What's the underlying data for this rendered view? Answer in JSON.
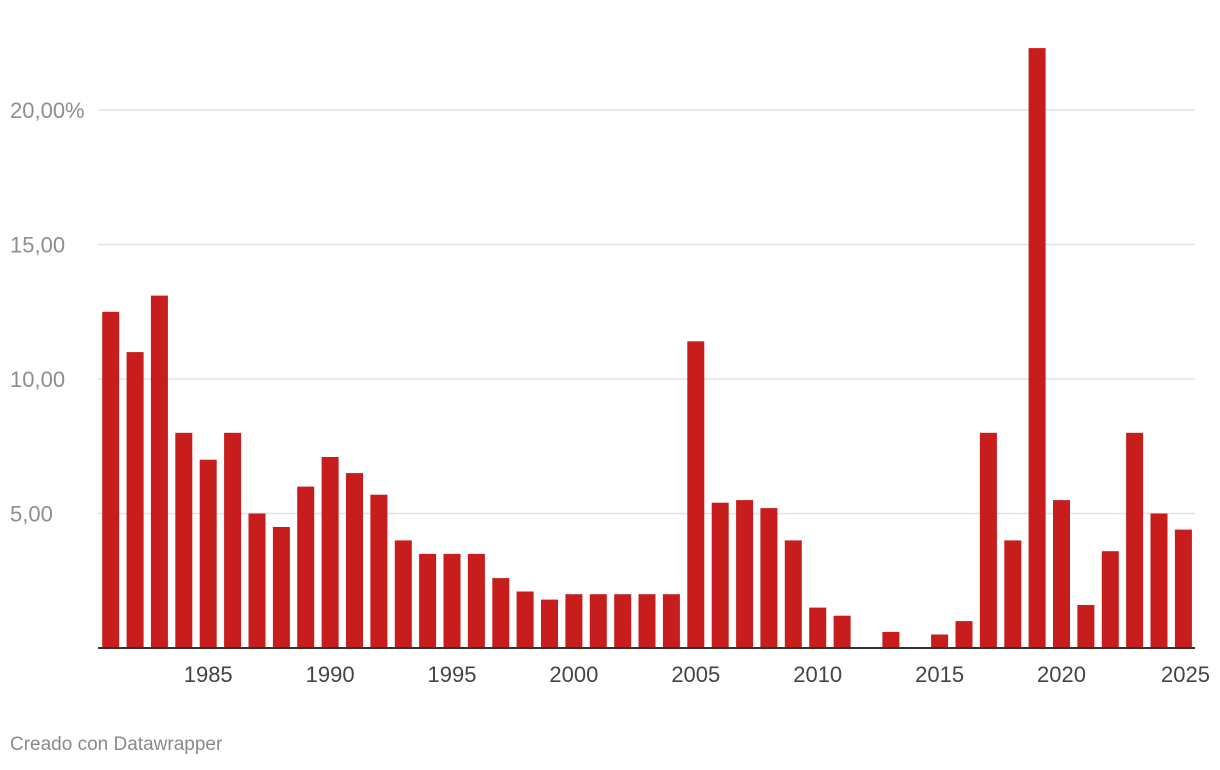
{
  "chart_data": {
    "type": "bar",
    "title": "",
    "xlabel": "",
    "ylabel": "",
    "ylim": [
      0,
      20
    ],
    "y_ticks": [
      {
        "value": 5,
        "label": "5,00"
      },
      {
        "value": 10,
        "label": "10,00"
      },
      {
        "value": 15,
        "label": "15,00"
      },
      {
        "value": 20,
        "label": "20,00%"
      }
    ],
    "x_tick_labels": [
      "1985",
      "1990",
      "1995",
      "2000",
      "2005",
      "2010",
      "2015",
      "2020",
      "2025"
    ],
    "categories": [
      1981,
      1982,
      1983,
      1984,
      1985,
      1986,
      1987,
      1988,
      1989,
      1990,
      1991,
      1992,
      1993,
      1994,
      1995,
      1996,
      1997,
      1998,
      1999,
      2000,
      2001,
      2002,
      2003,
      2004,
      2005,
      2006,
      2007,
      2008,
      2009,
      2010,
      2011,
      2012,
      2013,
      2014,
      2015,
      2016,
      2017,
      2018,
      2019,
      2020,
      2021,
      2022,
      2023,
      2024,
      2025
    ],
    "values": [
      12.5,
      11.0,
      13.1,
      8.0,
      7.0,
      8.0,
      5.0,
      4.5,
      6.0,
      7.1,
      6.5,
      5.7,
      4.0,
      3.5,
      3.5,
      3.5,
      2.6,
      2.1,
      1.8,
      2.0,
      2.0,
      2.0,
      2.0,
      2.0,
      11.4,
      5.4,
      5.5,
      5.2,
      4.0,
      1.5,
      1.2,
      0,
      0.6,
      0,
      0.5,
      1.0,
      8.0,
      4.0,
      22.3,
      5.5,
      1.6,
      3.6,
      8.0,
      5.0,
      4.4
    ],
    "bar_color": "#c71e1d",
    "grid": true
  },
  "footer": {
    "credit": "Creado con Datawrapper"
  }
}
